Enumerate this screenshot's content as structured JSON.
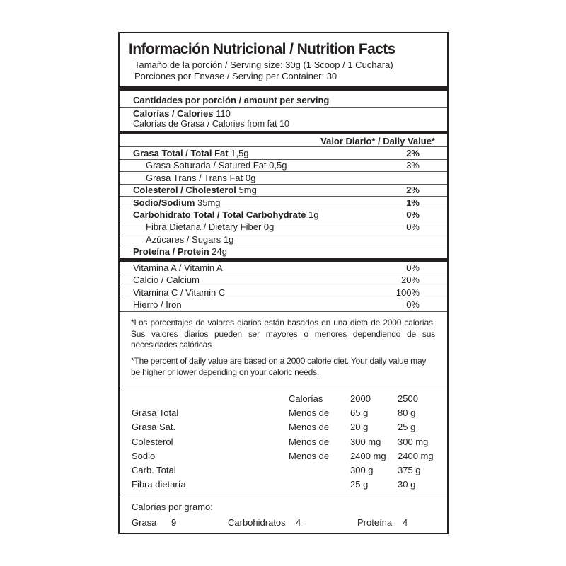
{
  "header": {
    "title": "Información Nutricional / Nutrition Facts",
    "serving_size": "Tamaño de la porción / Serving size: 30g (1 Scoop / 1 Cuchara)",
    "servings_per_container": "Porciones por Envase / Serving per Container: 30"
  },
  "amount_per_serving": "Cantidades por porción / amount per serving",
  "calories": {
    "label": "Calorías / Calories",
    "value": "110",
    "from_fat": "Calorías de Grasa / Calories from fat 10"
  },
  "daily_value_header": "Valor Diario* / Daily Value*",
  "nutrients": [
    {
      "label": "Grasa Total / Total Fat",
      "amount": "1,5g",
      "dv": "2%",
      "bold": true,
      "indent": false
    },
    {
      "label": "Grasa Saturada / Satured Fat",
      "amount": "0,5g",
      "dv": "3%",
      "bold": false,
      "indent": true
    },
    {
      "label": "Grasa Trans /  Trans Fat",
      "amount": "0g",
      "dv": "",
      "bold": false,
      "indent": true
    },
    {
      "label": "Colesterol / Cholesterol",
      "amount": "5mg",
      "dv": "2%",
      "bold": true,
      "indent": false
    },
    {
      "label": "Sodio/Sodium",
      "amount": "35mg",
      "dv": "1%",
      "bold": true,
      "indent": false
    },
    {
      "label": "Carbohidrato Total / Total Carbohydrate",
      "amount": "1g",
      "dv": "0%",
      "bold": true,
      "indent": false
    },
    {
      "label": "Fibra Dietaria / Dietary Fiber",
      "amount": "0g",
      "dv": "0%",
      "bold": false,
      "indent": true
    },
    {
      "label": "Azúcares / Sugars",
      "amount": "1g",
      "dv": "",
      "bold": false,
      "indent": true
    },
    {
      "label": "Proteína / Protein",
      "amount": "24g",
      "dv": "",
      "bold": true,
      "indent": false
    }
  ],
  "vitamins": [
    {
      "label": "Vitamina A / Vitamin A",
      "dv": "0%"
    },
    {
      "label": "Calcio / Calcium",
      "dv": "20%"
    },
    {
      "label": "Vitamina C / Vitamin C",
      "dv": "100%"
    },
    {
      "label": "Hierro / Iron",
      "dv": "0%"
    }
  ],
  "footnote_es": "*Los porcentajes de valores diarios están basados en una dieta de 2000 calorías. Sus valores diarios pueden ser mayores o menores dependiendo de sus necesidades calóricas",
  "footnote_en": "*The percent of daily value are based on a 2000 calorie diet. Your daily value may be higher or lower depending on your caloric needs.",
  "reference_table": {
    "header": [
      "",
      "Calorías",
      "2000",
      "2500"
    ],
    "rows": [
      [
        "Grasa Total",
        "Menos de",
        "65 g",
        "80 g"
      ],
      [
        "Grasa Sat.",
        "Menos de",
        "20 g",
        "25 g"
      ],
      [
        "Colesterol",
        "Menos de",
        "300 mg",
        "300 mg"
      ],
      [
        "Sodio",
        "Menos de",
        "2400 mg",
        "2400 mg"
      ],
      [
        "Carb. Total",
        "",
        "300 g",
        "375 g"
      ],
      [
        "Fibra dietaría",
        "",
        "25 g",
        "30 g"
      ]
    ]
  },
  "calories_per_gram": {
    "title": "Calorías por gramo:",
    "items": [
      {
        "label": "Grasa",
        "value": "9"
      },
      {
        "label": "Carbohidratos",
        "value": "4"
      },
      {
        "label": "Proteína",
        "value": "4"
      }
    ]
  }
}
